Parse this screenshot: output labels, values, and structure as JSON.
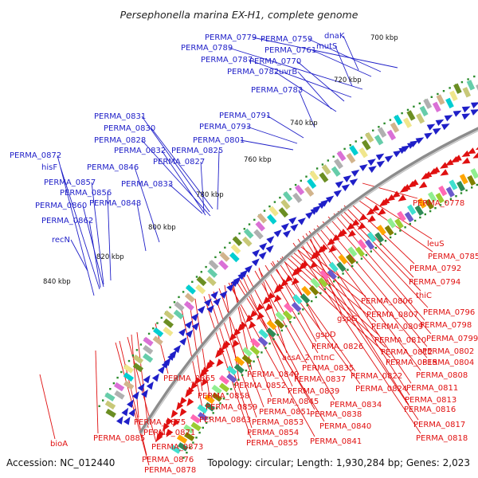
{
  "title": "Persephonella marina EX-H1, complete genome",
  "accession": "Accession: NC_012440",
  "topology": "Topology: circular; Length: 1,930,284 bp; Genes: 2,023",
  "colors": {
    "forward": "#1f1fc8",
    "reverse": "#e01010",
    "backbone": "#8c8c8c",
    "gc_dots": "#2a8a2a"
  },
  "kbp_ticks": [
    "700 kbp",
    "720 kbp",
    "740 kbp",
    "760 kbp",
    "780 kbp",
    "800 kbp",
    "820 kbp",
    "840 kbp"
  ],
  "forward_labels": [
    "PERMA_0779",
    "PERMA_0759",
    "dnaK",
    "PERMA_0789",
    "PERMA_0761",
    "mutS",
    "PERMA_0787",
    "PERMA_0770",
    "PERMA_0782",
    "uvrB",
    "PERMA_0783",
    "PERMA_0831",
    "PERMA_0791",
    "PERMA_0830",
    "PERMA_0793",
    "PERMA_0828",
    "PERMA_0801",
    "PERMA_0832",
    "PERMA_0825",
    "PERMA_0872",
    "PERMA_0827",
    "hisF",
    "PERMA_0846",
    "PERMA_0857",
    "PERMA_0833",
    "PERMA_0856",
    "PERMA_0860",
    "PERMA_0848",
    "PERMA_0862",
    "recN"
  ],
  "reverse_labels": [
    "PERMA_0778",
    "leuS",
    "PERMA_0785",
    "PERMA_0792",
    "PERMA_0794",
    "thiC",
    "PERMA_0806",
    "PERMA_0796",
    "PERMA_0807",
    "PERMA_0798",
    "gspG",
    "PERMA_0809",
    "PERMA_0799",
    "PERMA_0810",
    "gspD",
    "PERMA_0812",
    "PERMA_0802",
    "PERMA_0826",
    "PERMA_0815",
    "PERMA_0804",
    "acsA_2",
    "mtnC",
    "PERMA_0835",
    "PERMA_0822",
    "PERMA_0808",
    "PERMA_0849",
    "PERMA_0837",
    "PERMA_0811",
    "PERMA_0865",
    "PERMA_0852",
    "PERMA_0839",
    "PERMA_0824",
    "PERMA_0813",
    "PERMA_0858",
    "PERMA_0845",
    "PERMA_0834",
    "PERMA_0816",
    "PERMA_0859",
    "PERMA_0851",
    "PERMA_0838",
    "PERMA_0863",
    "PERMA_0853",
    "PERMA_0840",
    "PERMA_0875",
    "PERMA_0817",
    "PERMA_0871",
    "PERMA_0854",
    "PERMA_0885",
    "PERMA_0855",
    "PERMA_0841",
    "PERMA_0818",
    "PERMA_0873",
    "bioA",
    "PERMA_0876",
    "PERMA_0878"
  ]
}
